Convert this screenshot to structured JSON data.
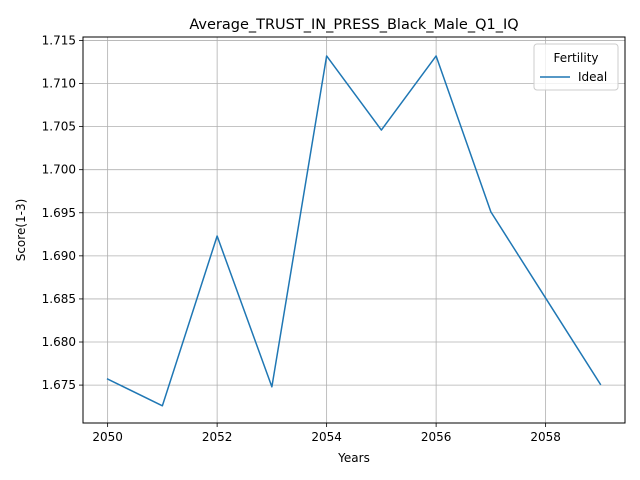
{
  "chart_data": {
    "type": "line",
    "title": "Average_TRUST_IN_PRESS_Black_Male_Q1_IQ",
    "xlabel": "Years",
    "ylabel": "Score(1-3)",
    "x": [
      2050,
      2051,
      2052,
      2053,
      2054,
      2055,
      2056,
      2057,
      2058,
      2059
    ],
    "series": [
      {
        "name": "Ideal",
        "color": "#1f77b4",
        "values": [
          1.6757,
          1.6726,
          1.6923,
          1.6748,
          1.7132,
          1.7046,
          1.7132,
          1.6951,
          1.6851,
          1.6751
        ]
      }
    ],
    "xlim": [
      2049.55,
      2059.45
    ],
    "ylim": [
      1.6706,
      1.7154
    ],
    "xticks": [
      "2050",
      "2052",
      "2054",
      "2056",
      "2058"
    ],
    "yticks": [
      "1.675",
      "1.680",
      "1.685",
      "1.690",
      "1.695",
      "1.700",
      "1.705",
      "1.710",
      "1.715"
    ],
    "grid": true,
    "legend": {
      "title": "Fertility",
      "placement": "top-right"
    }
  }
}
